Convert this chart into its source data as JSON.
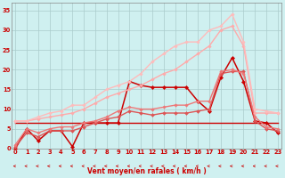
{
  "background_color": "#cff0f0",
  "grid_color": "#aacccc",
  "xlabel": "Vent moyen/en rafales ( km/h )",
  "series": [
    {
      "y": [
        0,
        5,
        2,
        4.5,
        4.5,
        0.5,
        6.5,
        6.5,
        6.5,
        6.5,
        17,
        16,
        15.5,
        15.5,
        15.5,
        15.5,
        12,
        9.5,
        18,
        23,
        17,
        7,
        6.5,
        4
      ],
      "color": "#cc0000",
      "lw": 1.1,
      "marker": "D",
      "ms": 2.2,
      "alpha": 1.0
    },
    {
      "y": [
        6.5,
        6.5,
        6.5,
        6.5,
        6.5,
        6.5,
        6.5,
        6.5,
        6.5,
        6.5,
        6.5,
        6.5,
        6.5,
        6.5,
        6.5,
        6.5,
        6.5,
        6.5,
        6.5,
        6.5,
        6.5,
        6.5,
        6.5,
        6.5
      ],
      "color": "#cc0000",
      "lw": 1.0,
      "marker": null,
      "ms": 0,
      "alpha": 1.0
    },
    {
      "y": [
        0.5,
        4,
        3,
        4.5,
        4.5,
        4.5,
        5.5,
        6.5,
        7.5,
        8,
        9.5,
        9,
        8.5,
        9,
        9,
        9,
        9.5,
        10,
        19,
        19.5,
        19.5,
        7,
        5,
        4.5
      ],
      "color": "#dd5555",
      "lw": 1.0,
      "marker": "D",
      "ms": 2.0,
      "alpha": 1.0
    },
    {
      "y": [
        1,
        5,
        4,
        5,
        5.5,
        5.5,
        6.5,
        7,
        8,
        9.5,
        10.5,
        10,
        10,
        10.5,
        11,
        11,
        12,
        12,
        19.5,
        20,
        19,
        8,
        5.5,
        5
      ],
      "color": "#ee7777",
      "lw": 1.0,
      "marker": "D",
      "ms": 1.8,
      "alpha": 1.0
    },
    {
      "y": [
        7,
        7,
        7.5,
        8,
        8.5,
        9,
        10,
        11.5,
        13,
        14,
        15,
        16,
        17.5,
        19,
        20,
        22,
        24,
        26,
        30,
        31,
        26,
        9,
        9,
        9
      ],
      "color": "#ffaaaa",
      "lw": 1.0,
      "marker": "D",
      "ms": 1.8,
      "alpha": 1.0
    },
    {
      "y": [
        7,
        7,
        8,
        9,
        9.5,
        11,
        11,
        13,
        15,
        16,
        17,
        19,
        22,
        24,
        26,
        27,
        27,
        30,
        31,
        34,
        27,
        10,
        9.5,
        9
      ],
      "color": "#ffbbbb",
      "lw": 1.0,
      "marker": "D",
      "ms": 1.8,
      "alpha": 1.0
    }
  ],
  "ylim": [
    0,
    37
  ],
  "xlim": [
    -0.3,
    23.3
  ],
  "yticks": [
    0,
    5,
    10,
    15,
    20,
    25,
    30,
    35
  ],
  "xticks": [
    0,
    1,
    2,
    3,
    4,
    5,
    6,
    7,
    8,
    9,
    10,
    11,
    12,
    13,
    14,
    15,
    16,
    17,
    18,
    19,
    20,
    21,
    22,
    23
  ],
  "arrow_color": "#cc0000",
  "label_fontsize": 5.5,
  "tick_fontsize": 4.8
}
